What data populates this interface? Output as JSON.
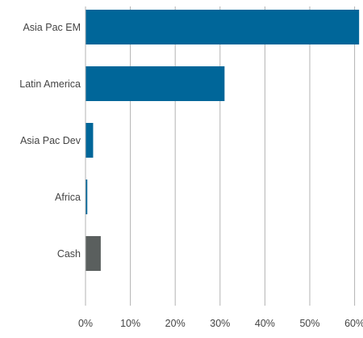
{
  "chart_data": {
    "type": "bar",
    "orientation": "horizontal",
    "categories": [
      "Asia Pac EM",
      "Latin America",
      "Asia Pac Dev",
      "Africa",
      "Cash"
    ],
    "values": [
      62,
      31,
      1.7,
      0.4,
      3.4
    ],
    "bar_colors": [
      "#006699",
      "#006699",
      "#006699",
      "#006699",
      "#5a5f5e"
    ],
    "x_ticks": [
      "0%",
      "10%",
      "20%",
      "30%",
      "40%",
      "50%",
      "60%"
    ],
    "xlim": [
      0,
      61
    ],
    "grid": true,
    "grid_color": "#b3b3b3",
    "axis_color": "#b3b3b3",
    "label_color": "#444444"
  }
}
